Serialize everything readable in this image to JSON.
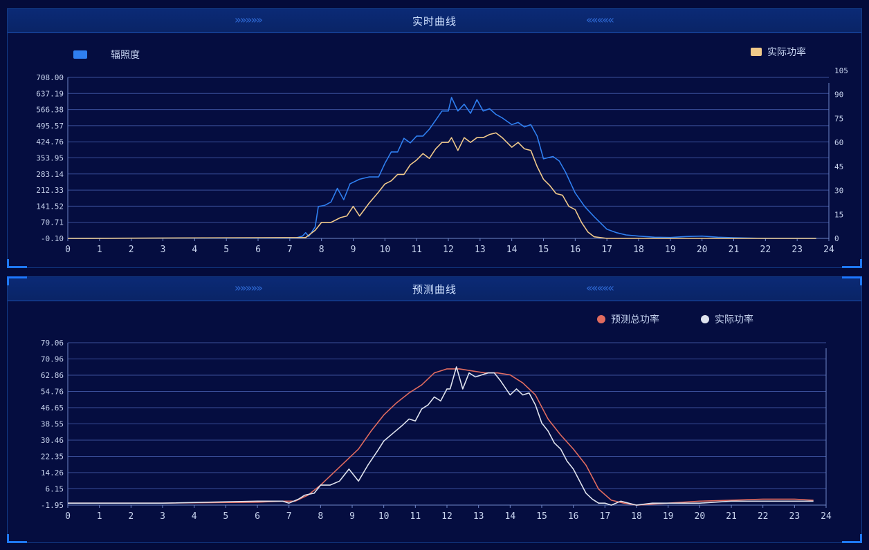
{
  "panel_top": {
    "title": "实时曲线",
    "chevrons_left": "»»»»»",
    "chevrons_right": "«««««"
  },
  "panel_bottom": {
    "title": "预测曲线",
    "chevrons_left": "»»»»»",
    "chevrons_right": "«««««"
  },
  "colors": {
    "irradiance": "#2f7ff0",
    "actual_power_top": "#f0c98a",
    "predicted_power": "#e06b5f",
    "actual_power_bottom": "#dfe3ee",
    "grid": "#3a4f9a",
    "axis": "#6f86c8"
  },
  "chart_data": [
    {
      "type": "line",
      "title": "实时曲线",
      "legend": "top",
      "grid": true,
      "x_ticks": [
        0,
        1,
        2,
        3,
        4,
        5,
        6,
        7,
        8,
        9,
        10,
        11,
        12,
        13,
        14,
        15,
        16,
        17,
        18,
        19,
        20,
        21,
        22,
        23,
        24
      ],
      "xlim": [
        0,
        24
      ],
      "y_left_ticks": [
        "-0.10",
        "70.71",
        "141.52",
        "212.33",
        "283.14",
        "353.95",
        "424.76",
        "495.57",
        "566.38",
        "637.19",
        "708.00"
      ],
      "y_left_lim": [
        -0.1,
        708.0
      ],
      "y_right_ticks": [
        "0",
        "15",
        "30",
        "45",
        "60",
        "75",
        "90",
        "105"
      ],
      "y_right_lim": [
        0,
        105
      ],
      "series": [
        {
          "name": "辐照度",
          "axis": "left",
          "x": [
            0,
            7.2,
            7.4,
            7.5,
            7.6,
            7.8,
            7.9,
            8.1,
            8.3,
            8.5,
            8.7,
            8.9,
            9.2,
            9.5,
            9.8,
            10.0,
            10.2,
            10.4,
            10.6,
            10.8,
            11.0,
            11.2,
            11.4,
            11.6,
            11.8,
            12.0,
            12.1,
            12.3,
            12.5,
            12.7,
            12.9,
            13.1,
            13.3,
            13.5,
            13.7,
            14.0,
            14.2,
            14.4,
            14.6,
            14.8,
            15.0,
            15.3,
            15.5,
            15.7,
            16.0,
            16.3,
            16.6,
            17.0,
            17.3,
            17.6,
            18.0,
            18.5,
            19.0,
            19.5,
            20.0,
            20.5,
            21.0,
            22.0,
            23.0,
            23.6
          ],
          "values": [
            0,
            2,
            10,
            25,
            8,
            50,
            140,
            145,
            160,
            220,
            170,
            240,
            260,
            270,
            270,
            330,
            380,
            380,
            440,
            420,
            450,
            450,
            480,
            520,
            560,
            560,
            620,
            560,
            590,
            550,
            610,
            560,
            570,
            545,
            530,
            500,
            510,
            490,
            500,
            450,
            350,
            360,
            340,
            290,
            200,
            140,
            95,
            40,
            25,
            15,
            10,
            5,
            4,
            8,
            10,
            5,
            3,
            0,
            0,
            0
          ]
        },
        {
          "name": "实际功率",
          "axis": "right",
          "x": [
            0,
            7.5,
            7.8,
            8.0,
            8.3,
            8.6,
            8.8,
            9.0,
            9.2,
            9.5,
            9.8,
            10.0,
            10.2,
            10.4,
            10.6,
            10.8,
            11.0,
            11.2,
            11.4,
            11.6,
            11.8,
            12.0,
            12.1,
            12.3,
            12.5,
            12.7,
            12.9,
            13.1,
            13.3,
            13.5,
            13.7,
            14.0,
            14.2,
            14.4,
            14.6,
            14.8,
            15.0,
            15.2,
            15.4,
            15.6,
            15.8,
            16.0,
            16.2,
            16.4,
            16.6,
            17.0,
            17.5,
            18.0,
            19.0,
            20.0,
            21.0,
            22.0,
            23.0,
            23.6
          ],
          "values": [
            0,
            0.5,
            5,
            10,
            10,
            13,
            14,
            20,
            14,
            22,
            29,
            34,
            36,
            40,
            40,
            46,
            49,
            53,
            50,
            56,
            60,
            60,
            63,
            55,
            63,
            60,
            63,
            63,
            65,
            66,
            63,
            57,
            60,
            56,
            55,
            45,
            37,
            33,
            28,
            27,
            20,
            18,
            10,
            4,
            1,
            0,
            0,
            0,
            0,
            0,
            0,
            0,
            0,
            0
          ]
        }
      ]
    },
    {
      "type": "line",
      "title": "预测曲线",
      "legend": "top-right",
      "grid": true,
      "x_ticks": [
        0,
        1,
        2,
        3,
        4,
        5,
        6,
        7,
        8,
        9,
        10,
        11,
        12,
        13,
        14,
        15,
        16,
        17,
        18,
        19,
        20,
        21,
        22,
        23,
        24
      ],
      "xlim": [
        0,
        24
      ],
      "y_ticks": [
        "-1.95",
        "6.15",
        "14.26",
        "22.35",
        "30.46",
        "38.55",
        "46.65",
        "54.76",
        "62.86",
        "70.96",
        "79.06"
      ],
      "ylim": [
        -1.95,
        79.06
      ],
      "series": [
        {
          "name": "预测总功率",
          "x": [
            0,
            3,
            6,
            6.8,
            7.2,
            7.6,
            8.0,
            8.4,
            8.8,
            9.2,
            9.6,
            10.0,
            10.4,
            10.8,
            11.2,
            11.6,
            12.0,
            12.4,
            12.8,
            13.2,
            13.6,
            14.0,
            14.4,
            14.8,
            15.2,
            15.6,
            16.0,
            16.4,
            16.8,
            17.2,
            17.6,
            18.0,
            19.0,
            20.0,
            21.0,
            22.0,
            23.0,
            23.6
          ],
          "values": [
            -1,
            -1,
            -0.5,
            0,
            0,
            3,
            8,
            14,
            20,
            26,
            35,
            43,
            49,
            54,
            58,
            64,
            66,
            66,
            65,
            64,
            64,
            63,
            59,
            53,
            41,
            33,
            26,
            18,
            6,
            0.5,
            -1,
            -2,
            -1,
            0,
            0.5,
            1,
            1,
            0.5
          ]
        },
        {
          "name": "实际功率",
          "x": [
            0,
            3,
            6,
            6.8,
            7.0,
            7.3,
            7.5,
            7.8,
            8.0,
            8.3,
            8.6,
            8.9,
            9.2,
            9.5,
            9.8,
            10.0,
            10.3,
            10.6,
            10.8,
            11.0,
            11.2,
            11.4,
            11.6,
            11.8,
            12.0,
            12.1,
            12.3,
            12.5,
            12.7,
            12.9,
            13.1,
            13.3,
            13.5,
            13.7,
            14.0,
            14.2,
            14.4,
            14.6,
            14.8,
            15.0,
            15.2,
            15.4,
            15.6,
            15.8,
            16.0,
            16.2,
            16.4,
            16.6,
            16.8,
            17.0,
            17.2,
            17.5,
            18.0,
            18.5,
            19.0,
            20.0,
            21.0,
            22.0,
            23.0,
            23.6
          ],
          "values": [
            -1,
            -1,
            0,
            0,
            -1,
            1,
            3,
            4,
            8,
            8,
            10,
            16,
            10,
            18,
            25,
            30,
            34,
            38,
            41,
            40,
            46,
            48,
            52,
            50,
            56,
            56,
            67,
            56,
            64,
            62,
            63,
            64,
            64,
            60,
            53,
            56,
            53,
            54,
            48,
            39,
            35,
            29,
            26,
            20,
            16,
            10,
            4,
            1,
            -1,
            -1,
            -2,
            0,
            -2,
            -1,
            -1,
            -1,
            0,
            0,
            0,
            0
          ]
        }
      ]
    }
  ]
}
